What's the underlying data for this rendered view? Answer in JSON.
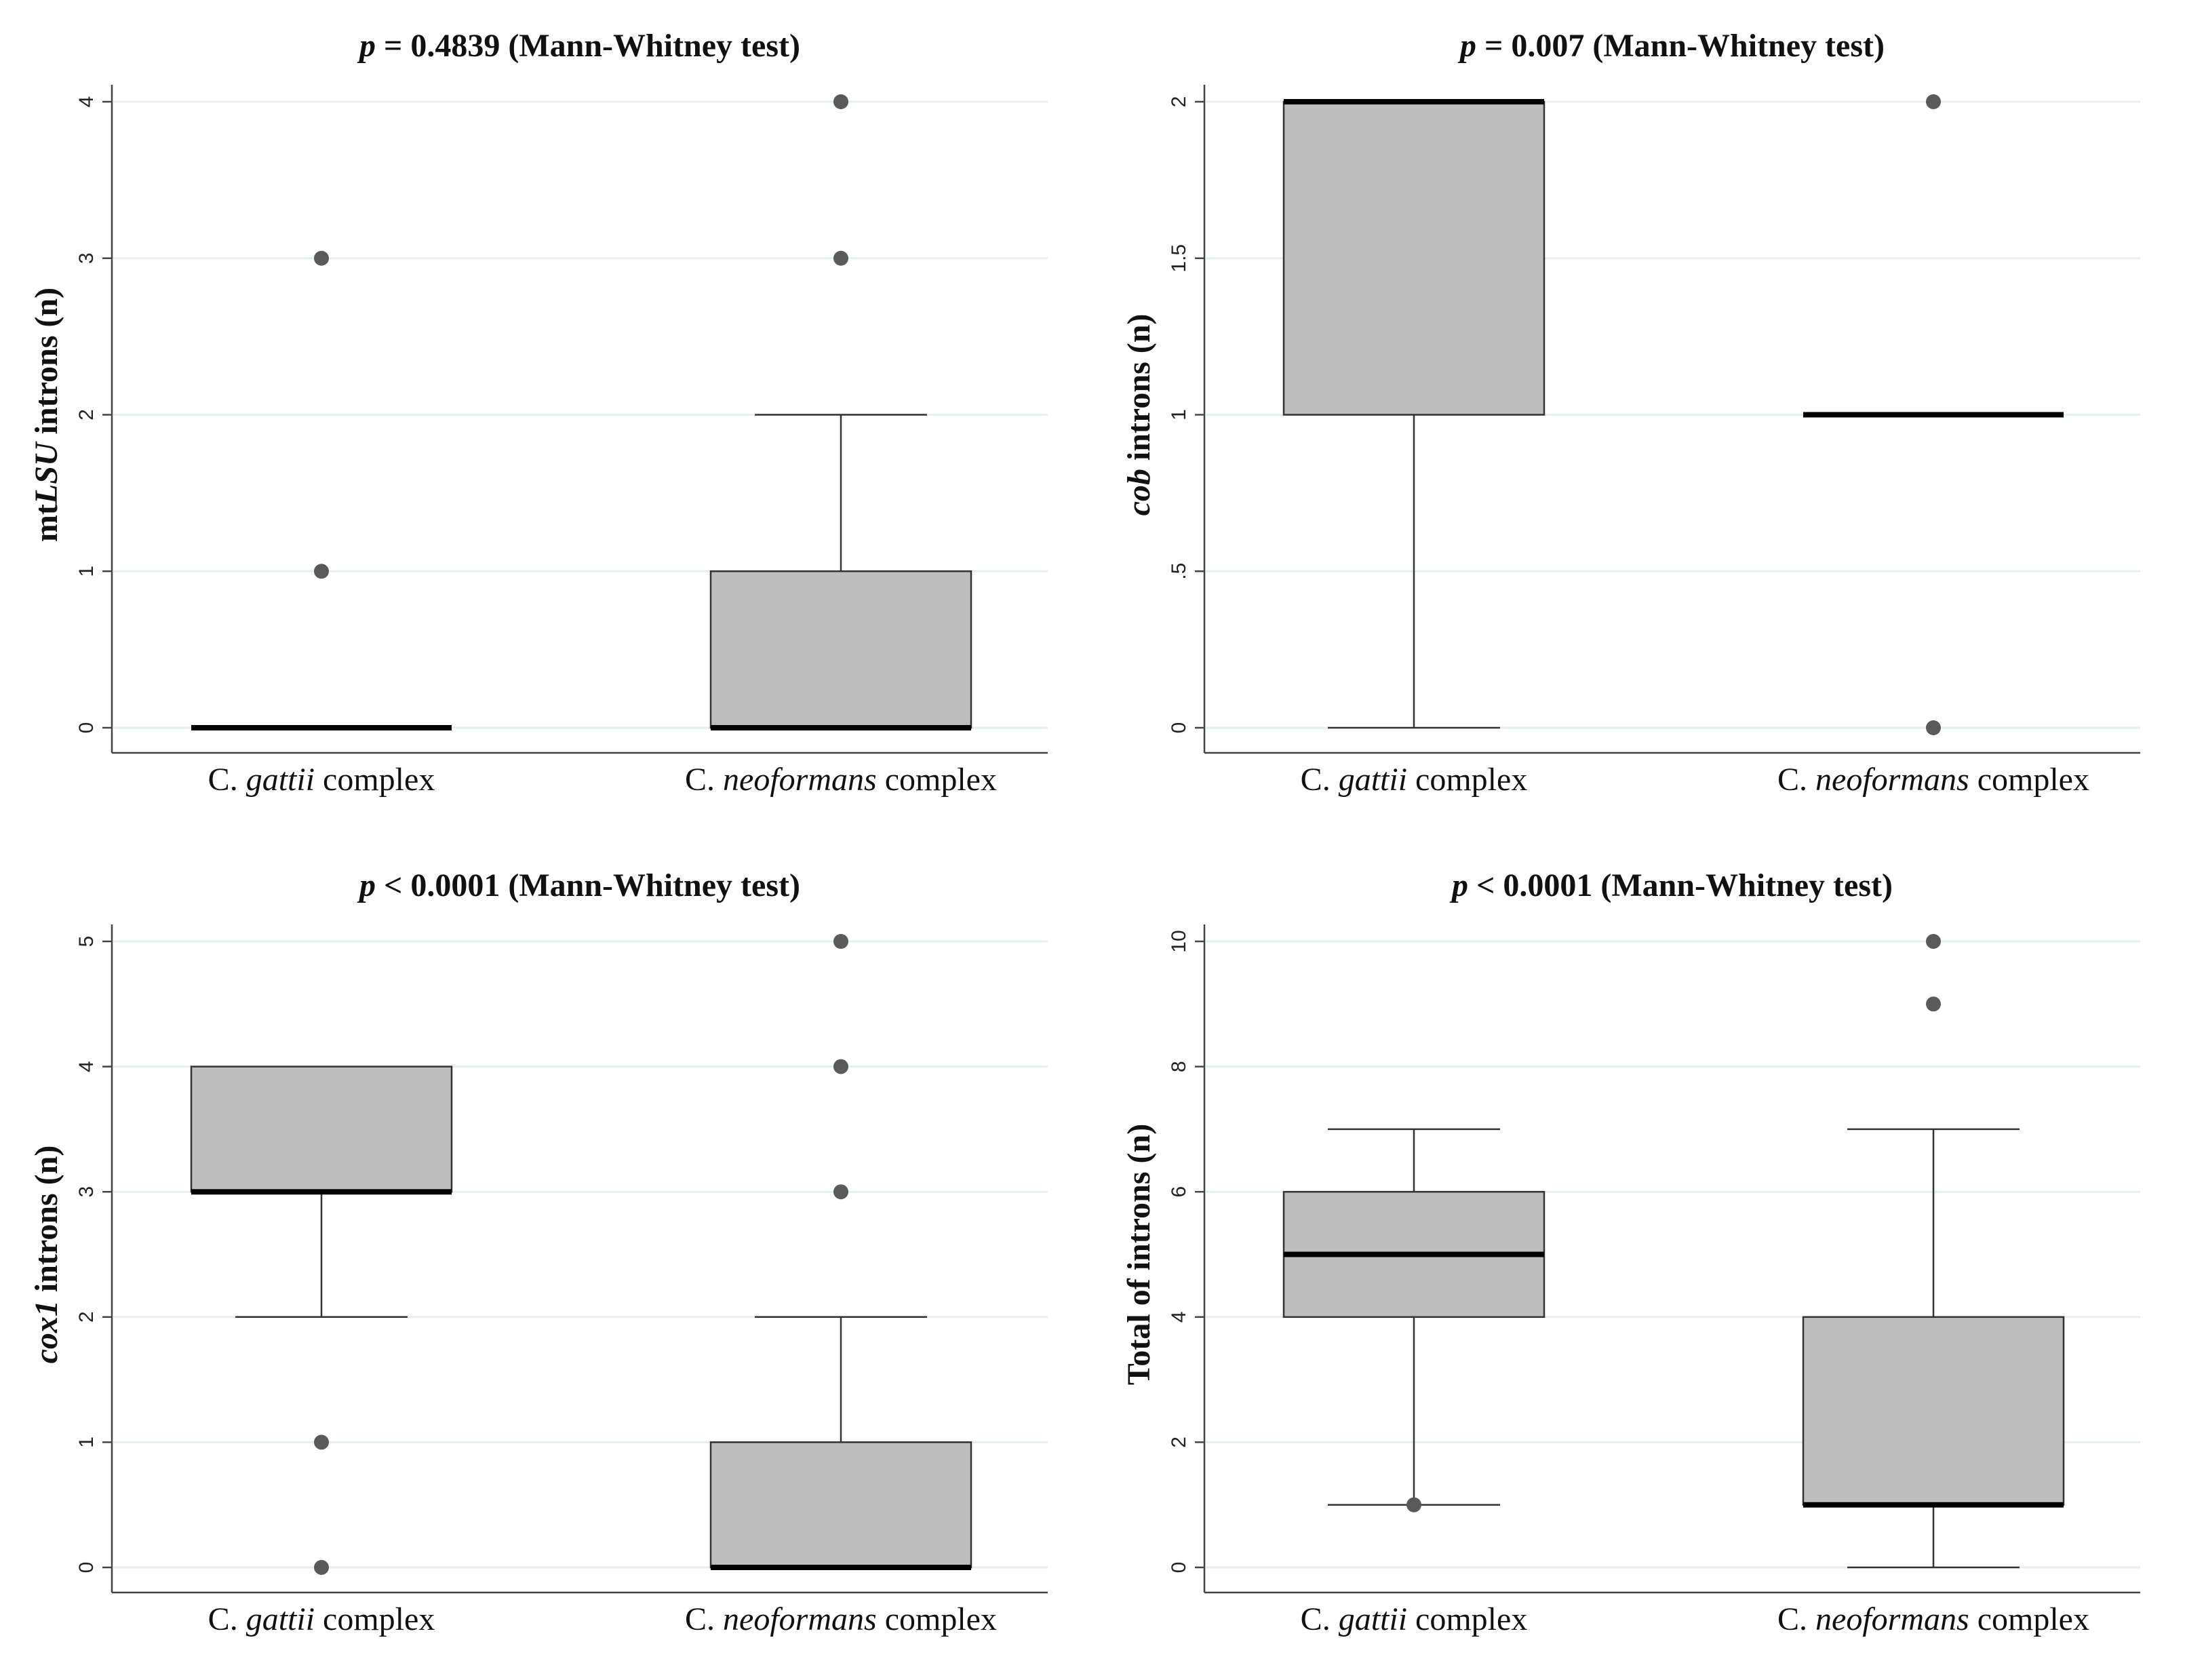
{
  "chart_data": [
    {
      "type": "box",
      "title": {
        "p_symbol": "p",
        "text": " = 0.4839  (Mann-Whitney test)"
      },
      "ylabel": [
        {
          "t": "mt"
        },
        {
          "t": "LSU",
          "i": true
        },
        {
          "t": " introns (n)"
        }
      ],
      "xlabel": "",
      "ylim": [
        0,
        4
      ],
      "yticks": [
        0,
        1,
        2,
        3,
        4
      ],
      "ytick_labels": [
        "0",
        "1",
        "2",
        "3",
        "4"
      ],
      "categories": [
        {
          "label": [
            {
              "t": "C. "
            },
            {
              "t": "gattii",
              "i": true
            },
            {
              "t": "  complex"
            }
          ],
          "q1": 0,
          "median": 0,
          "q3": 0,
          "whisker_low": 0,
          "whisker_high": 0,
          "outliers": [
            1,
            3
          ]
        },
        {
          "label": [
            {
              "t": "C. "
            },
            {
              "t": "neoformans",
              "i": true
            },
            {
              "t": "  complex"
            }
          ],
          "q1": 0,
          "median": 0,
          "q3": 1,
          "whisker_low": 0,
          "whisker_high": 2,
          "outliers": [
            3,
            4
          ]
        }
      ]
    },
    {
      "type": "box",
      "title": {
        "p_symbol": "p",
        "text": " = 0.007 (Mann-Whitney test)"
      },
      "ylabel": [
        {
          "t": "cob",
          "i": true
        },
        {
          "t": " introns (n)"
        }
      ],
      "xlabel": "",
      "ylim": [
        0,
        2
      ],
      "yticks": [
        0,
        0.5,
        1,
        1.5,
        2
      ],
      "ytick_labels": [
        "0",
        ".5",
        "1",
        "1.5",
        "2"
      ],
      "categories": [
        {
          "label": [
            {
              "t": "C. "
            },
            {
              "t": "gattii",
              "i": true
            },
            {
              "t": "  complex"
            }
          ],
          "q1": 1,
          "median": 2,
          "q3": 2,
          "whisker_low": 0,
          "whisker_high": 2,
          "outliers": []
        },
        {
          "label": [
            {
              "t": "C. "
            },
            {
              "t": "neoformans",
              "i": true
            },
            {
              "t": "  complex"
            }
          ],
          "q1": 1,
          "median": 1,
          "q3": 1,
          "whisker_low": 1,
          "whisker_high": 1,
          "outliers": [
            0,
            2
          ]
        }
      ]
    },
    {
      "type": "box",
      "title": {
        "p_symbol": "p",
        "text": " < 0.0001 (Mann-Whitney test)"
      },
      "ylabel": [
        {
          "t": "cox1",
          "i": true
        },
        {
          "t": " introns (n)"
        }
      ],
      "xlabel": "",
      "ylim": [
        0,
        5
      ],
      "yticks": [
        0,
        1,
        2,
        3,
        4,
        5
      ],
      "ytick_labels": [
        "0",
        "1",
        "2",
        "3",
        "4",
        "5"
      ],
      "categories": [
        {
          "label": [
            {
              "t": "C. "
            },
            {
              "t": "gattii",
              "i": true
            },
            {
              "t": "  complex"
            }
          ],
          "q1": 3,
          "median": 3,
          "q3": 4,
          "whisker_low": 2,
          "whisker_high": 4,
          "outliers": [
            0,
            1
          ]
        },
        {
          "label": [
            {
              "t": "C. "
            },
            {
              "t": "neoformans",
              "i": true
            },
            {
              "t": "  complex"
            }
          ],
          "q1": 0,
          "median": 0,
          "q3": 1,
          "whisker_low": 0,
          "whisker_high": 2,
          "outliers": [
            3,
            4,
            5
          ]
        }
      ]
    },
    {
      "type": "box",
      "title": {
        "p_symbol": "p",
        "text": " < 0.0001   (Mann-Whitney test)"
      },
      "ylabel": [
        {
          "t": "Total of introns (n)"
        }
      ],
      "xlabel": "",
      "ylim": [
        0,
        10
      ],
      "yticks": [
        0,
        2,
        4,
        6,
        8,
        10
      ],
      "ytick_labels": [
        "0",
        "2",
        "4",
        "6",
        "8",
        "10"
      ],
      "categories": [
        {
          "label": [
            {
              "t": "C. "
            },
            {
              "t": "gattii",
              "i": true
            },
            {
              "t": "  complex"
            }
          ],
          "q1": 4,
          "median": 5,
          "q3": 6,
          "whisker_low": 1,
          "whisker_high": 7,
          "outliers": [
            1
          ]
        },
        {
          "label": [
            {
              "t": "C. "
            },
            {
              "t": "neoformans",
              "i": true
            },
            {
              "t": "  complex"
            }
          ],
          "q1": 1,
          "median": 1,
          "q3": 4,
          "whisker_low": 0,
          "whisker_high": 7,
          "outliers": [
            9,
            10
          ]
        }
      ]
    }
  ],
  "style": {
    "box_fill": "#bebebe",
    "box_stroke": "#333333",
    "median_color": "#000000",
    "outlier_color": "#5a5a5a",
    "grid_color": "#e6eeee",
    "axis_color": "#444444"
  }
}
